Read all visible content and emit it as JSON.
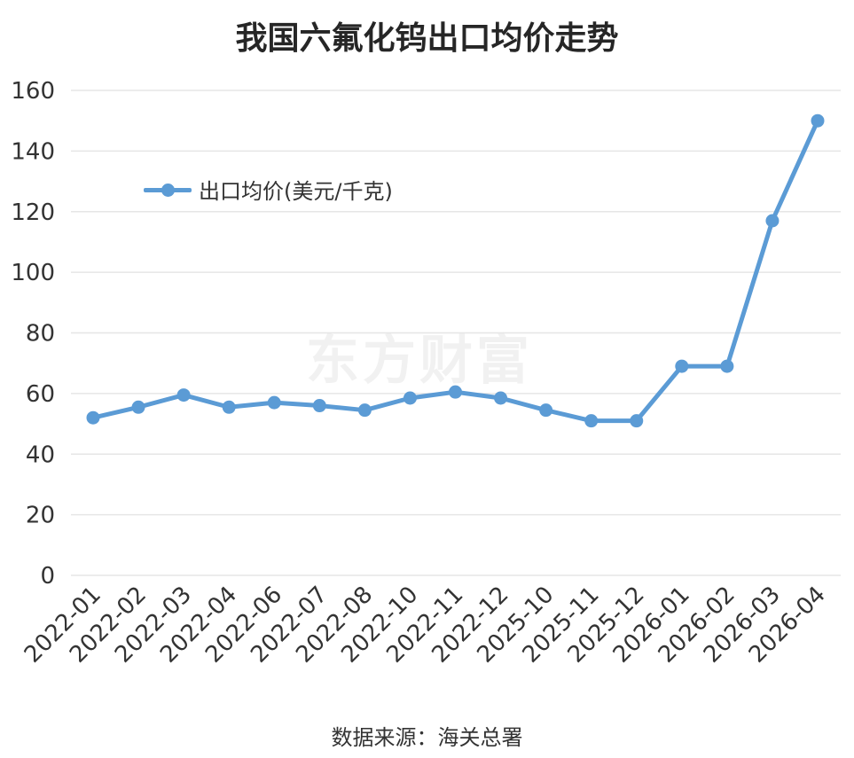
{
  "chart_data": {
    "type": "line",
    "title": "我国六氟化钨出口均价走势",
    "categories": [
      "2022-01",
      "2022-02",
      "2022-03",
      "2022-04",
      "2022-06",
      "2022-07",
      "2022-08",
      "2022-10",
      "2022-11",
      "2022-12",
      "2025-10",
      "2025-11",
      "2025-12",
      "2026-01",
      "2026-02",
      "2026-03",
      "2026-04"
    ],
    "series": [
      {
        "name": "出口均价(美元/千克)",
        "values": [
          52,
          55.5,
          59.5,
          55.5,
          57,
          56,
          54.5,
          58.5,
          60.5,
          58.5,
          54.5,
          51,
          51,
          69,
          69,
          117,
          150
        ],
        "color": "#5b9bd5"
      }
    ],
    "ylim": [
      0,
      160
    ],
    "yticks": [
      0,
      20,
      40,
      60,
      80,
      100,
      120,
      140,
      160
    ],
    "grid": true,
    "legend_position": "top-left",
    "xlabel": "",
    "ylabel": ""
  },
  "watermark": "东方财富",
  "source_note": "数据来源：海关总署"
}
